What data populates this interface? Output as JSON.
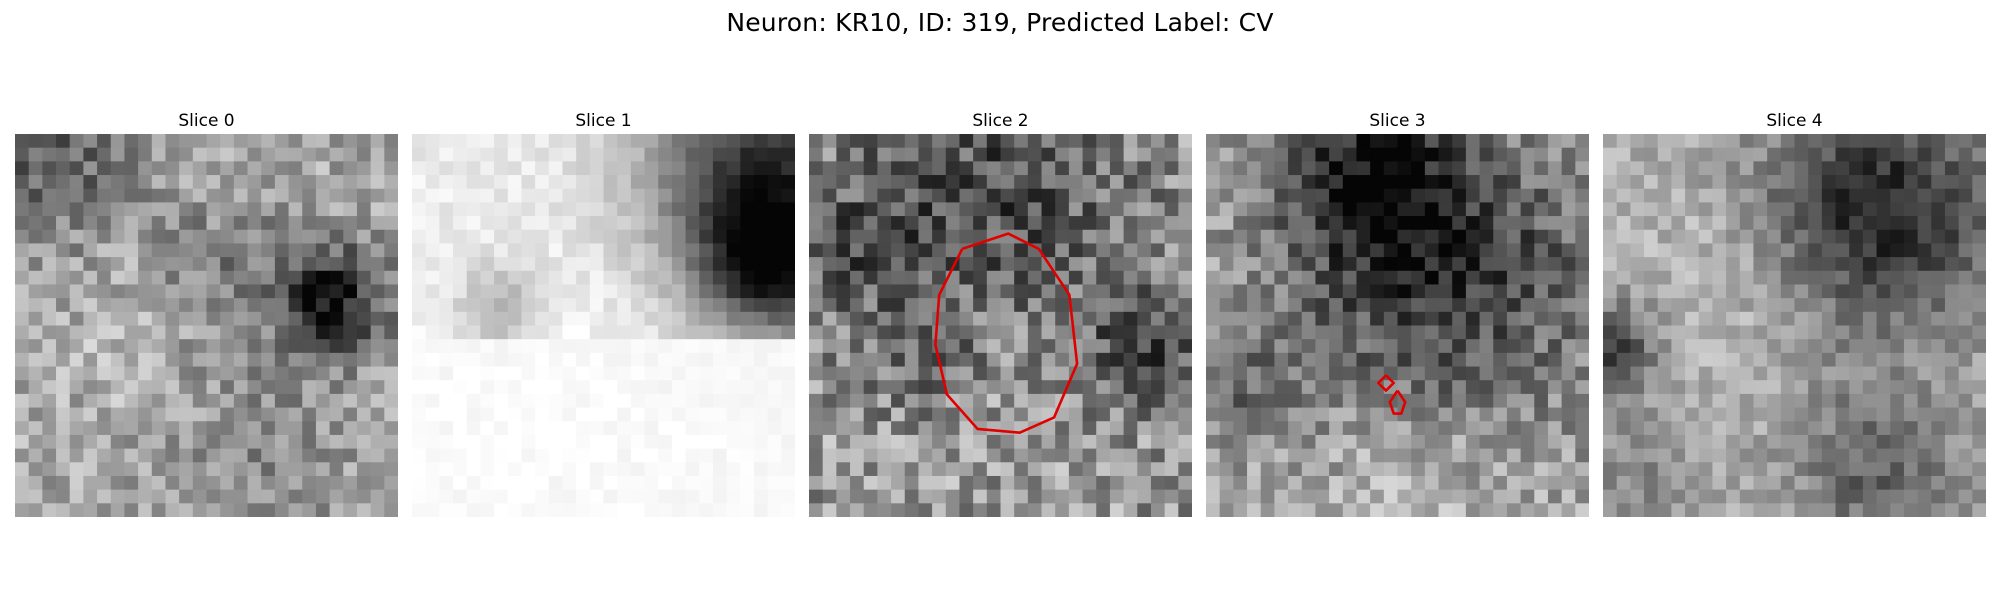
{
  "figure": {
    "title": "Neuron: KR10, ID: 319, Predicted Label: CV"
  },
  "panels": [
    {
      "title": "Slice 0",
      "seed": 11,
      "base": 0.7,
      "contrast": 0.1,
      "noise": 0.17,
      "blobs": [
        [
          0.83,
          0.43,
          0.1,
          -0.55
        ],
        [
          0.55,
          0.35,
          0.12,
          -0.18
        ],
        [
          0.1,
          0.08,
          0.14,
          -0.3
        ],
        [
          0.3,
          0.55,
          0.18,
          0.05
        ],
        [
          0.65,
          0.8,
          0.18,
          -0.12
        ]
      ]
    },
    {
      "title": "Slice 1",
      "seed": 23,
      "base": 0.92,
      "contrast": 0.02,
      "noise": 0.06,
      "smooth": true,
      "blobs": [
        [
          0.92,
          0.12,
          0.22,
          -0.75
        ],
        [
          0.93,
          0.35,
          0.12,
          -0.6
        ],
        [
          0.23,
          0.45,
          0.08,
          -0.25
        ],
        [
          0.35,
          0.25,
          0.25,
          0.0
        ],
        [
          0.4,
          0.8,
          0.4,
          0.08
        ]
      ]
    },
    {
      "title": "Slice 2",
      "seed": 37,
      "base": 0.62,
      "contrast": 0.05,
      "noise": 0.23,
      "blobs": [
        [
          0.5,
          0.18,
          0.25,
          -0.3
        ],
        [
          0.12,
          0.3,
          0.15,
          -0.2
        ],
        [
          0.88,
          0.55,
          0.12,
          -0.3
        ],
        [
          0.5,
          0.55,
          0.2,
          0.05
        ],
        [
          0.3,
          0.6,
          0.1,
          -0.15
        ]
      ],
      "contour": [
        [
          0.4,
          0.3
        ],
        [
          0.52,
          0.26
        ],
        [
          0.6,
          0.3
        ],
        [
          0.68,
          0.42
        ],
        [
          0.7,
          0.6
        ],
        [
          0.64,
          0.74
        ],
        [
          0.55,
          0.78
        ],
        [
          0.44,
          0.77
        ],
        [
          0.36,
          0.68
        ],
        [
          0.33,
          0.55
        ],
        [
          0.34,
          0.42
        ],
        [
          0.4,
          0.3
        ]
      ]
    },
    {
      "title": "Slice 3",
      "seed": 53,
      "base": 0.68,
      "contrast": 0.08,
      "noise": 0.18,
      "blobs": [
        [
          0.45,
          0.12,
          0.17,
          -0.5
        ],
        [
          0.6,
          0.45,
          0.28,
          -0.35
        ],
        [
          0.08,
          0.65,
          0.1,
          -0.2
        ],
        [
          0.55,
          0.9,
          0.2,
          0.15
        ],
        [
          0.85,
          0.3,
          0.15,
          -0.1
        ]
      ],
      "contour": [
        [
          0.47,
          0.63
        ],
        [
          0.49,
          0.65
        ],
        [
          0.47,
          0.67
        ],
        [
          0.45,
          0.65
        ],
        [
          0.47,
          0.63
        ]
      ],
      "contour2": [
        [
          0.5,
          0.67
        ],
        [
          0.52,
          0.7
        ],
        [
          0.51,
          0.73
        ],
        [
          0.49,
          0.73
        ],
        [
          0.48,
          0.7
        ],
        [
          0.5,
          0.67
        ]
      ]
    },
    {
      "title": "Slice 4",
      "seed": 71,
      "base": 0.7,
      "contrast": 0.05,
      "noise": 0.12,
      "blobs": [
        [
          0.72,
          0.2,
          0.22,
          -0.55
        ],
        [
          0.02,
          0.55,
          0.08,
          -0.45
        ],
        [
          0.35,
          0.35,
          0.18,
          0.1
        ],
        [
          0.72,
          0.88,
          0.15,
          -0.3
        ],
        [
          0.1,
          0.9,
          0.12,
          -0.15
        ]
      ]
    }
  ]
}
